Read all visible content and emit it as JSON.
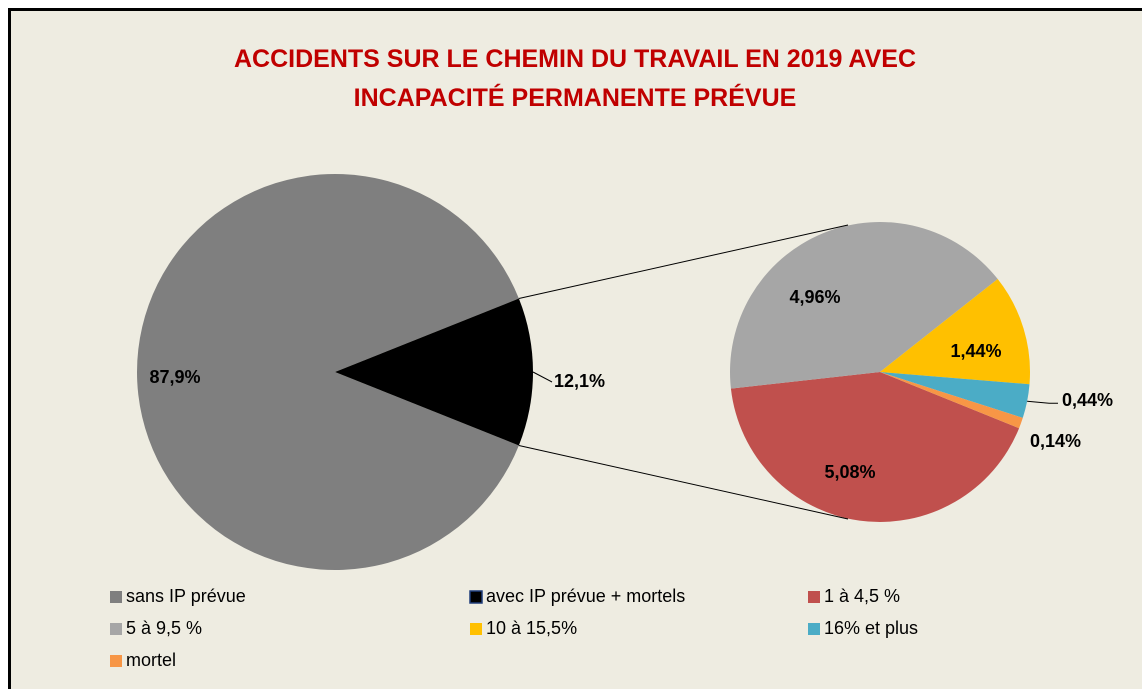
{
  "chart_data": {
    "type": "pie",
    "title": "ACCIDENTS SUR LE CHEMIN DU TRAVAIL EN 2019 AVEC INCAPACITÉ PERMANENTE PRÉVUE",
    "categories": [
      "sans IP prévue",
      "avec IP prévue + mortels"
    ],
    "values": [
      87.9,
      12.1
    ],
    "value_labels": [
      "87,9%",
      "12,1%"
    ],
    "colors": [
      "#7f7f7f",
      "#000000"
    ],
    "secondary": {
      "categories": [
        "1 à 4,5 %",
        "5 à 9,5 %",
        "10 à 15,5%",
        "16% et plus",
        "mortel"
      ],
      "values": [
        5.08,
        4.96,
        1.44,
        0.44,
        0.14
      ],
      "value_labels": [
        "5,08%",
        "4,96%",
        "1,44%",
        "0,44%",
        "0,14%"
      ],
      "colors": [
        "#c0504d",
        "#a6a6a6",
        "#ffc000",
        "#4bacc6",
        "#f79646"
      ]
    },
    "legend": "bottom"
  }
}
